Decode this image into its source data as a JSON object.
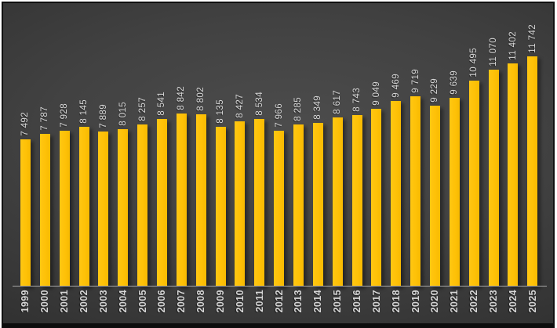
{
  "chart_data": {
    "type": "bar",
    "title": "",
    "categories": [
      "1999",
      "2000",
      "2001",
      "2002",
      "2003",
      "2004",
      "2005",
      "2006",
      "2007",
      "2008",
      "2009",
      "2010",
      "2011",
      "2012",
      "2013",
      "2014",
      "2015",
      "2016",
      "2017",
      "2018",
      "2019",
      "2020",
      "2021",
      "2022",
      "2023",
      "2024",
      "2025"
    ],
    "values": [
      7492,
      7787,
      7928,
      8145,
      7889,
      8015,
      8257,
      8541,
      8842,
      8802,
      8135,
      8427,
      8534,
      7966,
      8285,
      8349,
      8617,
      8743,
      9049,
      9469,
      9719,
      9229,
      9639,
      10495,
      11070,
      11402,
      11742
    ],
    "value_labels": [
      "7 492",
      "7 787",
      "7 928",
      "8 145",
      "7 889",
      "8 015",
      "8 257",
      "8 541",
      "8 842",
      "8 802",
      "8 135",
      "8 427",
      "8 534",
      "7 966",
      "8 285",
      "8 349",
      "8 617",
      "8 743",
      "9 049",
      "9 469",
      "9 719",
      "9 229",
      "9 639",
      "10 495",
      "11 070",
      "11 402",
      "11 742"
    ],
    "xlabel": "",
    "ylabel": "",
    "ylim": [
      0,
      11742
    ],
    "grid": false,
    "legend": "none",
    "bar_color": "#FEC107",
    "label_color": "#D6D6D6",
    "axis_color": "#A6A6A6",
    "background_center_color": "#4D4D4D",
    "background_edge_color": "#242424",
    "border_color": "#111111",
    "label_rotation_degrees": 90
  }
}
